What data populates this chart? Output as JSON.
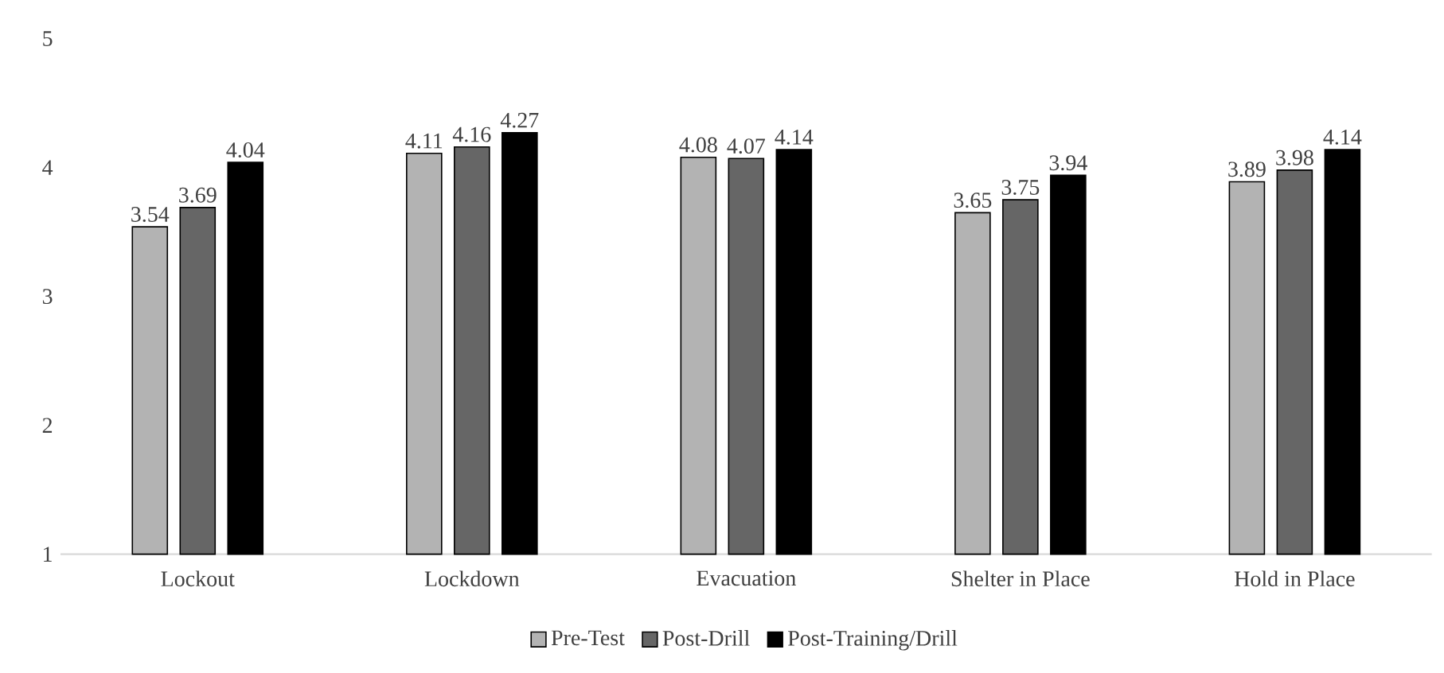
{
  "chart_data": {
    "type": "bar",
    "categories": [
      "Lockout",
      "Lockdown",
      "Evacuation",
      "Shelter in Place",
      "Hold in Place"
    ],
    "series": [
      {
        "name": "Pre-Test",
        "color": "#b3b3b3",
        "values": [
          3.54,
          4.11,
          4.08,
          3.65,
          3.89
        ]
      },
      {
        "name": "Post-Drill",
        "color": "#666666",
        "values": [
          3.69,
          4.16,
          4.07,
          3.75,
          3.98
        ]
      },
      {
        "name": "Post-Training/Drill",
        "color": "#000000",
        "values": [
          4.04,
          4.27,
          4.14,
          3.94,
          4.14
        ]
      }
    ],
    "ylim": [
      1,
      5
    ],
    "yticks": [
      1,
      2,
      3,
      4,
      5
    ],
    "data_labels": true,
    "legend": "bottom",
    "grid": false
  }
}
